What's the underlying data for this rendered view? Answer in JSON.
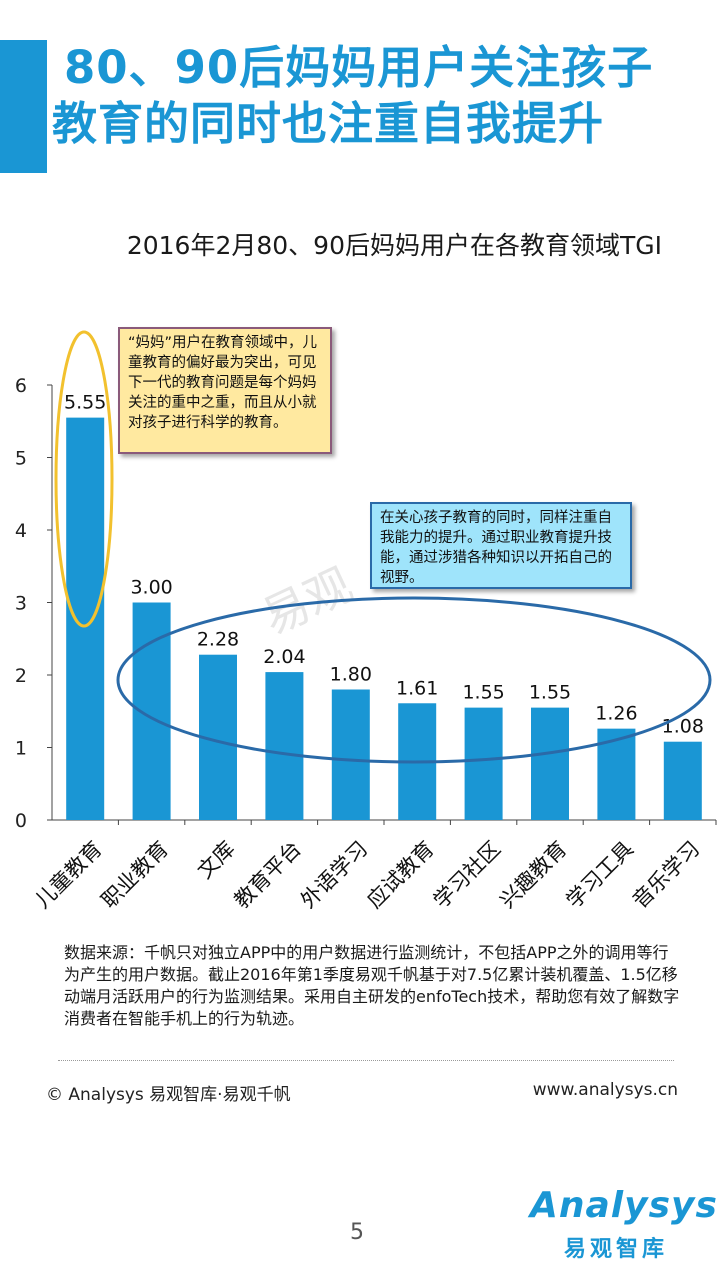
{
  "header": {
    "title_line1": "80、90后妈妈用户关注孩子",
    "title_line2": "教育的同时也注重自我提升",
    "accent": "#1a96d4"
  },
  "chart_data": {
    "type": "bar",
    "title": "2016年2月80、90后妈妈用户在各教育领域TGI",
    "categories": [
      "儿童教育",
      "职业教育",
      "文库",
      "教育平台",
      "外语学习",
      "应试教育",
      "学习社区",
      "兴趣教育",
      "学习工具",
      "音乐学习"
    ],
    "values": [
      5.55,
      3.0,
      2.28,
      2.04,
      1.8,
      1.61,
      1.55,
      1.55,
      1.26,
      1.08
    ],
    "value_labels": [
      "5.55",
      "3.00",
      "2.28",
      "2.04",
      "1.80",
      "1.61",
      "1.55",
      "1.55",
      "1.26",
      "1.08"
    ],
    "yticks": [
      "0",
      "1",
      "2",
      "3",
      "4",
      "5",
      "6"
    ],
    "ylim": [
      0,
      6
    ],
    "xlabel": "",
    "ylabel": "",
    "bar_color": "#1a96d4",
    "grid": false
  },
  "callouts": {
    "child": "“妈妈”用户在教育领域中，儿童教育的偏好最为突出，可见下一代的教育问题是每个妈妈关注的重中之重，而且从小就对孩子进行科学的教育。",
    "self": "在关心孩子教育的同时，同样注重自我能力的提升。通过职业教育提升技能，通过涉猎各种知识以开拓自己的视野。"
  },
  "watermark": "易观",
  "footer": {
    "source": "数据来源：千帆只对独立APP中的用户数据进行监测统计，不包括APP之外的调用等行为产生的用户数据。截止2016年第1季度易观千帆基于对7.5亿累计装机覆盖、1.5亿移动端月活跃用户的行为监测结果。采用自主研发的enfoTech技术，帮助您有效了解数字消费者在智能手机上的行为轨迹。",
    "copyright": "© Analysys 易观智库·易观千帆",
    "website": "www.analysys.cn",
    "page_number": "5",
    "logo_text": "Analysys",
    "logo_cn": "易观智库"
  }
}
